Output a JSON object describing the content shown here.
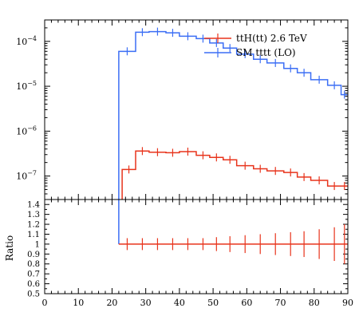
{
  "chart_data": [
    {
      "panel": "main",
      "type": "line",
      "yscale": "log",
      "xlim": [
        0,
        90
      ],
      "ylim": [
        3e-08,
        0.0003
      ],
      "ytick_labels": [
        {
          "label": "10",
          "exp": "−4",
          "value": 0.0001
        },
        {
          "label": "10",
          "exp": "−5",
          "value": 1e-05
        },
        {
          "label": "10",
          "exp": "−6",
          "value": 1e-06
        },
        {
          "label": "10",
          "exp": "−7",
          "value": 1e-07
        }
      ],
      "legend_position": "top-right",
      "series": [
        {
          "name": "ttH(tt) 2.6 TeV",
          "color": "#e8341c",
          "bin_edges": [
            23,
            27,
            31,
            36,
            40,
            45,
            49,
            53,
            57,
            62,
            66,
            71,
            75,
            79,
            84,
            88,
            92
          ],
          "values": [
            1.4e-07,
            3.6e-07,
            3.4e-07,
            3.3e-07,
            3.5e-07,
            2.9e-07,
            2.6e-07,
            2.3e-07,
            1.7e-07,
            1.45e-07,
            1.3e-07,
            1.2e-07,
            9.5e-08,
            8e-08,
            6e-08,
            6e-08
          ],
          "style": "steps with error bars"
        },
        {
          "name": "SM tttt (LO)",
          "color": "#3b6ef5",
          "bin_edges": [
            22,
            27,
            31,
            36,
            40,
            45,
            49,
            53,
            57,
            62,
            66,
            71,
            75,
            79,
            84,
            88,
            92
          ],
          "values": [
            6e-05,
            0.00016,
            0.000165,
            0.000155,
            0.00013,
            0.000115,
            9.2e-05,
            7.1e-05,
            5.2e-05,
            4e-05,
            3.3e-05,
            2.5e-05,
            2e-05,
            1.4e-05,
            1.05e-05,
            6.5e-06
          ],
          "style": "steps with error bars"
        }
      ]
    },
    {
      "panel": "ratio",
      "type": "line",
      "ylabel": "Ratio",
      "xlim": [
        0,
        90
      ],
      "ylim": [
        0.5,
        1.45
      ],
      "xticks": [
        0,
        10,
        20,
        30,
        40,
        50,
        60,
        70,
        80,
        90
      ],
      "yticks": [
        "0.5",
        "0.6",
        "0.7",
        "0.8",
        "0.9",
        "1",
        "1.1",
        "1.2",
        "1.3",
        "1.4"
      ],
      "series": [
        {
          "color": "#e8341c",
          "bin_edges": [
            22,
            27,
            31,
            36,
            40,
            45,
            49,
            53,
            57,
            62,
            66,
            71,
            75,
            79,
            84,
            88,
            92
          ],
          "values": [
            1,
            1,
            1,
            1,
            1,
            1,
            1,
            1,
            1,
            1,
            1,
            1,
            1,
            1,
            1,
            1
          ],
          "errors": [
            0.06,
            0.06,
            0.06,
            0.06,
            0.06,
            0.06,
            0.07,
            0.08,
            0.09,
            0.1,
            0.11,
            0.12,
            0.13,
            0.15,
            0.17,
            0.2
          ]
        }
      ]
    }
  ]
}
